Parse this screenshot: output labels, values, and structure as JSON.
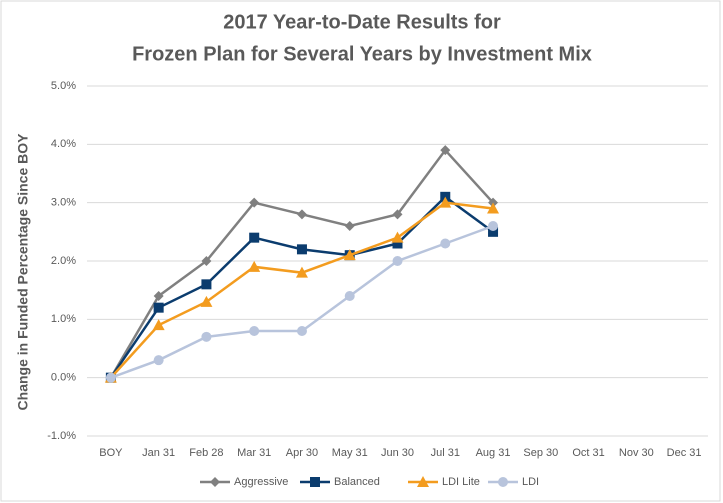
{
  "chart_data": {
    "type": "line",
    "title": [
      "2017 Year-to-Date Results for",
      "Frozen Plan for Several Years by Investment Mix"
    ],
    "y_label": "Change in Funded Percentage Since BOY",
    "categories": [
      "BOY",
      "Jan 31",
      "Feb 28",
      "Mar 31",
      "Apr 30",
      "May 31",
      "Jun 30",
      "Jul 31",
      "Aug 31",
      "Sep 30",
      "Oct 31",
      "Nov 30",
      "Dec 31"
    ],
    "series": [
      {
        "name": "Aggressive",
        "color": "#808080",
        "marker": "diamond",
        "values": [
          0,
          1.4,
          2.0,
          3.0,
          2.8,
          2.6,
          2.8,
          3.9,
          3.0,
          null,
          null,
          null,
          null
        ]
      },
      {
        "name": "Balanced",
        "color": "#0b3c6e",
        "marker": "square",
        "values": [
          0,
          1.2,
          1.6,
          2.4,
          2.2,
          2.1,
          2.3,
          3.1,
          2.5,
          null,
          null,
          null,
          null
        ]
      },
      {
        "name": "LDI Lite",
        "color": "#f39c1f",
        "marker": "triangle",
        "values": [
          0,
          0.9,
          1.3,
          1.9,
          1.8,
          2.1,
          2.4,
          3.0,
          2.9,
          null,
          null,
          null,
          null
        ]
      },
      {
        "name": "LDI",
        "color": "#b8c4dc",
        "marker": "circle",
        "values": [
          0,
          0.3,
          0.7,
          0.8,
          0.8,
          1.4,
          2.0,
          2.3,
          2.6,
          null,
          null,
          null,
          null
        ]
      }
    ],
    "ylim": [
      -1,
      5
    ],
    "yticks": [
      {
        "value": -1,
        "label": "-1.0%"
      },
      {
        "value": 0,
        "label": "0.0%"
      },
      {
        "value": 1,
        "label": "1.0%"
      },
      {
        "value": 2,
        "label": "2.0%"
      },
      {
        "value": 3,
        "label": "3.0%"
      },
      {
        "value": 4,
        "label": "4.0%"
      },
      {
        "value": 5,
        "label": "5.0%"
      }
    ],
    "grid": true,
    "legend": "bottom"
  }
}
